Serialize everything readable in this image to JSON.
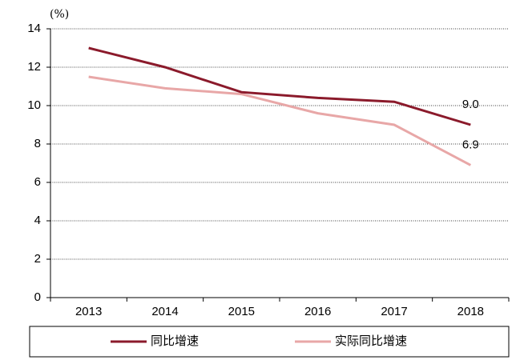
{
  "chart_data": {
    "type": "line",
    "y_axis_label": "(%)",
    "categories": [
      "2013",
      "2014",
      "2015",
      "2016",
      "2017",
      "2018"
    ],
    "series": [
      {
        "name": "同比增速",
        "color": "#8b1a2b",
        "values": [
          13.0,
          12.0,
          10.7,
          10.4,
          10.2,
          9.0
        ],
        "value_labels": [
          null,
          null,
          null,
          null,
          null,
          "9.0"
        ]
      },
      {
        "name": "实际同比增速",
        "color": "#e8a7a7",
        "values": [
          11.5,
          10.9,
          10.6,
          9.6,
          9.0,
          6.9
        ],
        "value_labels": [
          null,
          null,
          null,
          null,
          null,
          "6.9"
        ]
      }
    ],
    "ylim": [
      0,
      14
    ],
    "yticks": [
      0,
      2,
      4,
      6,
      8,
      10,
      12,
      14
    ],
    "grid": true,
    "legend": "bottom"
  }
}
